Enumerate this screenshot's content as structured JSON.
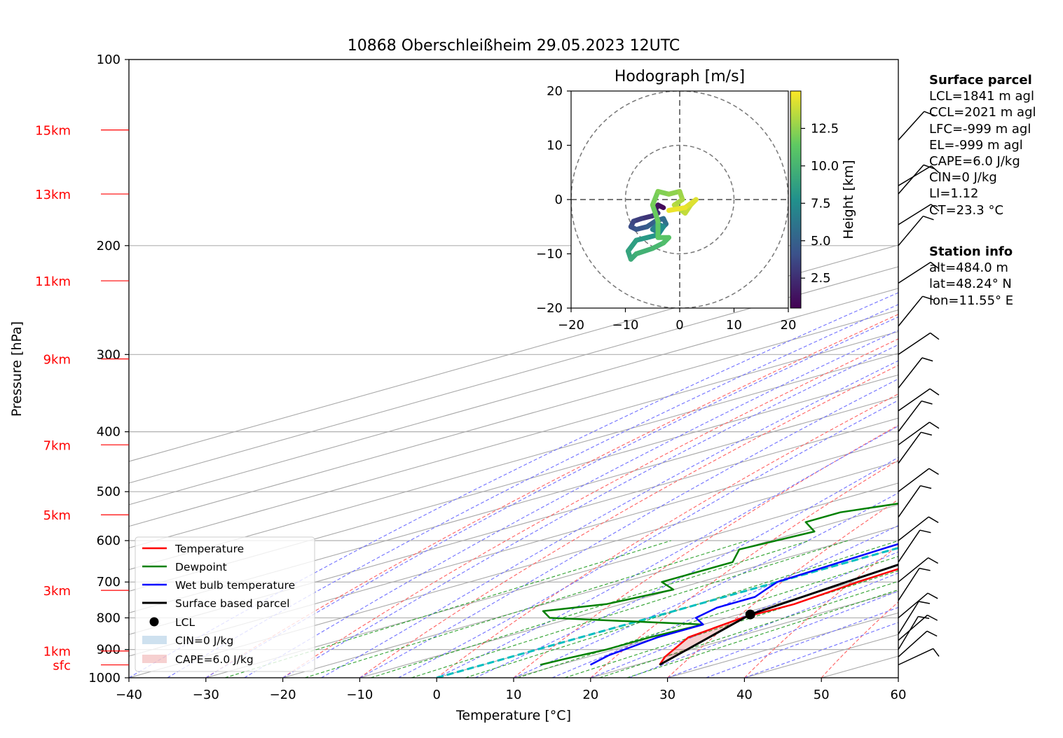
{
  "title": "10868 Oberschleißheim 29.05.2023 12UTC",
  "chart_data": [
    {
      "type": "line",
      "subtype": "skew-T log-P diagram",
      "xlabel": "Temperature [°C]",
      "ylabel": "Pressure [hPa]",
      "xlim": [
        -40,
        60
      ],
      "ylim": [
        1000,
        100
      ],
      "y_scale": "log",
      "grid": true,
      "x_ticks": [
        "−40",
        "−30",
        "−20",
        "−10",
        "0",
        "10",
        "20",
        "30",
        "40",
        "50",
        "60"
      ],
      "y_ticks": [
        "100",
        "200",
        "300",
        "400",
        "500",
        "600",
        "700",
        "800",
        "900",
        "1000"
      ],
      "height_labels": [
        {
          "label": "15km",
          "p": 130
        },
        {
          "label": "13km",
          "p": 165
        },
        {
          "label": "11km",
          "p": 228
        },
        {
          "label": "9km",
          "p": 305
        },
        {
          "label": "7km",
          "p": 420
        },
        {
          "label": "5km",
          "p": 545
        },
        {
          "label": "3km",
          "p": 722
        },
        {
          "label": "1km",
          "p": 905
        },
        {
          "label": "sfc",
          "p": 953
        }
      ],
      "legend_position": "lower-left",
      "series": [
        {
          "name": "Temperature",
          "color": "#ff0000",
          "points": [
            [
              23,
              953
            ],
            [
              20,
              925
            ],
            [
              14,
              860
            ],
            [
              12,
              800
            ],
            [
              12.4,
              760
            ],
            [
              10.5,
              700
            ],
            [
              9,
              640
            ],
            [
              7,
              600
            ],
            [
              5.5,
              550
            ],
            [
              3.5,
              500
            ],
            [
              2,
              470
            ],
            [
              0,
              440
            ],
            [
              -3,
              400
            ],
            [
              -5.5,
              370
            ],
            [
              -7,
              350
            ],
            [
              -11,
              310
            ],
            [
              -13,
              290
            ],
            [
              -14,
              275
            ],
            [
              -15,
              250
            ],
            [
              -16,
              230
            ],
            [
              -15,
              220
            ],
            [
              -13,
              200
            ],
            [
              -10,
              190
            ],
            [
              -8,
              180
            ],
            [
              -5,
              170
            ],
            [
              -2,
              160
            ],
            [
              2,
              150
            ],
            [
              3,
              145
            ],
            [
              6,
              140
            ],
            [
              8,
              135
            ],
            [
              11,
              130
            ]
          ]
        },
        {
          "name": "Dewpoint",
          "color": "#008000",
          "points": [
            [
              7.5,
              953
            ],
            [
              8,
              930
            ],
            [
              9,
              900
            ],
            [
              9,
              860
            ],
            [
              10,
              820
            ],
            [
              -13,
              800
            ],
            [
              -17,
              780
            ],
            [
              -12,
              760
            ],
            [
              -10,
              720
            ],
            [
              -15,
              700
            ],
            [
              -15,
              650
            ],
            [
              -20,
              620
            ],
            [
              -18.5,
              580
            ],
            [
              -24,
              560
            ],
            [
              -24,
              540
            ],
            [
              -20,
              520
            ],
            [
              -20,
              500
            ],
            [
              -22,
              480
            ],
            [
              -23,
              450
            ],
            [
              -26,
              430
            ],
            [
              -26,
              400
            ],
            [
              -24,
              380
            ],
            [
              -25,
              350
            ],
            [
              -23,
              300
            ],
            [
              -23,
              280
            ],
            [
              -22,
              260
            ],
            [
              -24,
              240
            ],
            [
              -23,
              220
            ],
            [
              -26,
              200
            ],
            [
              -31,
              175
            ],
            [
              -33,
              165
            ],
            [
              -35,
              160
            ],
            [
              -35,
              155
            ],
            [
              -35,
              150
            ],
            [
              -32,
              140
            ],
            [
              -29,
              132
            ],
            [
              -27,
              128
            ]
          ]
        },
        {
          "name": "Wet bulb temperature",
          "color": "#0000ff",
          "points": [
            [
              14,
              953
            ],
            [
              12,
              920
            ],
            [
              10,
              860
            ],
            [
              10,
              820
            ],
            [
              6,
              800
            ],
            [
              4,
              770
            ],
            [
              4,
              740
            ],
            [
              2,
              720
            ],
            [
              0,
              700
            ],
            [
              -1,
              650
            ],
            [
              -2,
              600
            ],
            [
              -3,
              550
            ],
            [
              -4,
              500
            ],
            [
              -5,
              470
            ],
            [
              -6.5,
              440
            ],
            [
              -8,
              410
            ],
            [
              -10,
              380
            ],
            [
              -12,
              350
            ],
            [
              -13,
              330
            ],
            [
              -14,
              310
            ],
            [
              -16,
              290
            ],
            [
              -16,
              270
            ],
            [
              -16,
              250
            ],
            [
              -16,
              230
            ],
            [
              -14,
              220
            ],
            [
              -13,
              210
            ],
            [
              -12,
              200
            ],
            [
              -9,
              190
            ],
            [
              -7,
              180
            ],
            [
              -4,
              170
            ],
            [
              -1,
              160
            ],
            [
              2,
              150
            ],
            [
              3,
              145
            ],
            [
              6,
              140
            ],
            [
              8,
              135
            ],
            [
              10,
              130
            ]
          ]
        },
        {
          "name": "Surface based parcel",
          "color": "#000000",
          "points": [
            [
              23,
              953
            ],
            [
              11.5,
              790
            ],
            [
              9,
              700
            ],
            [
              6,
              600
            ],
            [
              2,
              500
            ],
            [
              -1,
              450
            ],
            [
              -6,
              400
            ],
            [
              -13,
              350
            ],
            [
              -20,
              300
            ],
            [
              -30,
              250
            ],
            [
              -40,
              200
            ],
            [
              -55,
              150
            ],
            [
              -63,
              130
            ]
          ]
        }
      ],
      "lcl": {
        "label": "LCL",
        "t": 11.5,
        "p": 790
      },
      "cin_label": "CIN=0 J/kg",
      "cape_label": "CAPE=6.0 J/kg"
    },
    {
      "type": "scatter",
      "subtype": "hodograph",
      "title": "Hodograph [m/s]",
      "xlim": [
        -20,
        20
      ],
      "ylim": [
        -20,
        20
      ],
      "x_ticks": [
        "−20",
        "−10",
        "0",
        "10",
        "20"
      ],
      "y_ticks": [
        "−20",
        "−10",
        "0",
        "10",
        "20"
      ],
      "rings": [
        10,
        20
      ],
      "colorbar_label": "Height [km]",
      "colorbar_ticks": [
        "2.5",
        "5.0",
        "7.5",
        "10.0",
        "12.5"
      ],
      "colorbar_range": [
        0.5,
        15
      ],
      "colormap": "viridis",
      "points": [
        [
          -3,
          -1.5,
          0.8
        ],
        [
          -4,
          -1,
          1.2
        ],
        [
          -4.5,
          -2,
          1.8
        ],
        [
          -4,
          -2.5,
          2.4
        ],
        [
          -5,
          -3,
          2.8
        ],
        [
          -7,
          -3.5,
          3.2
        ],
        [
          -8.5,
          -4,
          3.6
        ],
        [
          -9,
          -5,
          4.0
        ],
        [
          -8,
          -5.5,
          4.4
        ],
        [
          -6,
          -5,
          4.8
        ],
        [
          -4.5,
          -4,
          5.2
        ],
        [
          -3,
          -3.5,
          5.6
        ],
        [
          -2.5,
          -4.5,
          6.0
        ],
        [
          -4,
          -6,
          6.4
        ],
        [
          -5,
          -5.5,
          6.8
        ],
        [
          -4,
          -4.5,
          7.2
        ],
        [
          -3,
          -5,
          7.6
        ],
        [
          -4,
          -6.5,
          8.0
        ],
        [
          -6,
          -7,
          8.3
        ],
        [
          -8,
          -7.5,
          8.6
        ],
        [
          -9.5,
          -9.5,
          9.0
        ],
        [
          -9,
          -11,
          9.4
        ],
        [
          -8,
          -10,
          9.8
        ],
        [
          -5,
          -9,
          10.2
        ],
        [
          -3,
          -8,
          10.6
        ],
        [
          -2,
          -7,
          11.0
        ],
        [
          -4,
          -7,
          11.3
        ],
        [
          -4,
          -4,
          11.6
        ],
        [
          -5,
          -1,
          11.9
        ],
        [
          -4,
          1.5,
          12.2
        ],
        [
          -2,
          1,
          12.5
        ],
        [
          0,
          1.5,
          12.8
        ],
        [
          0.5,
          0,
          13.1
        ],
        [
          -1,
          -1,
          13.4
        ],
        [
          1,
          -2.5,
          13.7
        ],
        [
          2,
          -1,
          14.0
        ],
        [
          3,
          0,
          14.3
        ],
        [
          1,
          -1.5,
          14.6
        ],
        [
          -2,
          -2,
          14.8
        ]
      ]
    },
    {
      "type": "wind_barbs",
      "levels_hpa": [
        953,
        925,
        900,
        870,
        850,
        800,
        750,
        700,
        650,
        600,
        550,
        500,
        450,
        420,
        400,
        370,
        340,
        300,
        270,
        230,
        200,
        185,
        165,
        160,
        135
      ]
    }
  ],
  "surface_parcel": {
    "heading": "Surface parcel",
    "lines": [
      "LCL=1841 m agl",
      "CCL=2021 m agl",
      "LFC=-999 m agl",
      "EL=-999 m agl",
      "CAPE=6.0 J/kg",
      "CIN=0 J/kg",
      "LI=1.12",
      "CT=23.3 °C"
    ]
  },
  "station_info": {
    "heading": "Station info",
    "lines": [
      "alt=484.0 m",
      "lat=48.24° N",
      "lon=11.55° E"
    ]
  }
}
